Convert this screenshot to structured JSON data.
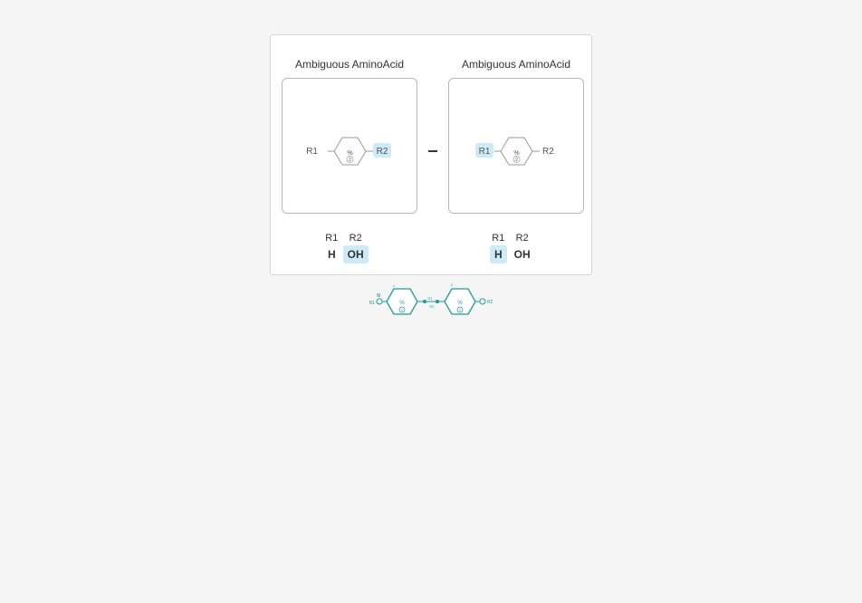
{
  "monomers": [
    {
      "title": "Ambiguous AminoAcid",
      "left_label": "R1",
      "right_label": "R2",
      "ring_text": "%",
      "ring_count": "2",
      "highlighted_rgroup": "R2",
      "substituents": [
        {
          "name": "R1",
          "value": "H",
          "highlighted": false
        },
        {
          "name": "R2",
          "value": "OH",
          "highlighted": true
        }
      ]
    },
    {
      "title": "Ambiguous AminoAcid",
      "left_label": "R1",
      "right_label": "R2",
      "ring_text": "%",
      "ring_count": "2",
      "highlighted_rgroup": "R1",
      "substituents": [
        {
          "name": "R1",
          "value": "H",
          "highlighted": true
        },
        {
          "name": "R2",
          "value": "OH",
          "highlighted": false
        }
      ]
    }
  ],
  "chain": {
    "start_label": "R1",
    "n_label": "N",
    "monomer_numbers": [
      "1",
      "2"
    ],
    "ring_text": "%",
    "ring_count": "2",
    "bond_top_label": "R1",
    "bond_bottom_label": "R2",
    "end_label": "R2",
    "color": "#1a9b9b"
  },
  "colors": {
    "highlight": "#cdeaf7",
    "ring_stroke": "#999999",
    "chain": "#1a9b9b"
  }
}
